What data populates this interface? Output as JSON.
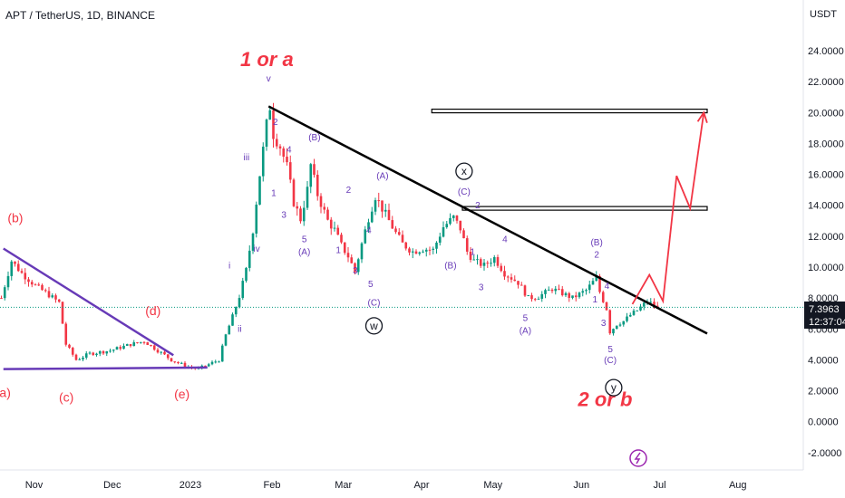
{
  "chart_data": {
    "type": "candlestick",
    "title": "APT / TetherUS, 1D, BINANCE",
    "currency": "USDT",
    "last_price": "7.3963",
    "countdown": "12:37:04",
    "ylim": [
      -3,
      26
    ],
    "y_ticks": [
      "24.0000",
      "22.0000",
      "20.0000",
      "18.0000",
      "16.0000",
      "14.0000",
      "12.0000",
      "10.0000",
      "8.0000",
      "6.0000",
      "4.0000",
      "2.0000",
      "0.0000",
      "-2.0000"
    ],
    "x_ticks": [
      "Nov",
      "Dec",
      "2023",
      "Feb",
      "Mar",
      "Apr",
      "May",
      "Jun",
      "Jul",
      "Aug"
    ],
    "price_path": [
      [
        0,
        8
      ],
      [
        3,
        10.4
      ],
      [
        6,
        9.6
      ],
      [
        10,
        8.8
      ],
      [
        14,
        8.2
      ],
      [
        17,
        7.7
      ],
      [
        19,
        5.0
      ],
      [
        22,
        4.0
      ],
      [
        26,
        4.4
      ],
      [
        32,
        4.6
      ],
      [
        38,
        5.0
      ],
      [
        42,
        5.2
      ],
      [
        46,
        4.6
      ],
      [
        50,
        4.0
      ],
      [
        54,
        3.6
      ],
      [
        58,
        3.4
      ],
      [
        61,
        3.7
      ],
      [
        64,
        4.0
      ],
      [
        66,
        5.6
      ],
      [
        68,
        6.8
      ],
      [
        70,
        8.1
      ],
      [
        72,
        9.8
      ],
      [
        74,
        12.4
      ],
      [
        76,
        16.0
      ],
      [
        78,
        19.2
      ],
      [
        79,
        20.4
      ],
      [
        80,
        18.6
      ],
      [
        82,
        17.8
      ],
      [
        84,
        16.5
      ],
      [
        86,
        14.2
      ],
      [
        88,
        13.1
      ],
      [
        90,
        15.0
      ],
      [
        91,
        16.6
      ],
      [
        93,
        14.7
      ],
      [
        96,
        13.0
      ],
      [
        98,
        12.4
      ],
      [
        100,
        11.4
      ],
      [
        102,
        10.7
      ],
      [
        104,
        9.7
      ],
      [
        106,
        11.5
      ],
      [
        108,
        13.2
      ],
      [
        110,
        14.6
      ],
      [
        113,
        13.4
      ],
      [
        116,
        12.2
      ],
      [
        118,
        11.5
      ],
      [
        121,
        11.0
      ],
      [
        124,
        11.2
      ],
      [
        127,
        11.1
      ],
      [
        130,
        12.6
      ],
      [
        133,
        13.2
      ],
      [
        135,
        12.5
      ],
      [
        137,
        11.0
      ],
      [
        139,
        10.4
      ],
      [
        142,
        10.1
      ],
      [
        145,
        10.6
      ],
      [
        148,
        9.6
      ],
      [
        152,
        9.0
      ],
      [
        155,
        8.0
      ],
      [
        158,
        8.1
      ],
      [
        162,
        8.6
      ],
      [
        165,
        8.3
      ],
      [
        168,
        8.0
      ],
      [
        172,
        8.5
      ],
      [
        175,
        9.3
      ],
      [
        176,
        8.4
      ],
      [
        178,
        7.3
      ],
      [
        179,
        5.8
      ],
      [
        181,
        6.3
      ],
      [
        183,
        6.5
      ],
      [
        185,
        6.9
      ],
      [
        187,
        7.2
      ],
      [
        190,
        7.8
      ],
      [
        193,
        7.4
      ]
    ],
    "trendlines": [
      {
        "name": "falling-resistance",
        "color": "#000000",
        "points": [
          [
            79,
            20.4
          ],
          [
            208,
            5.7
          ]
        ]
      },
      {
        "name": "triangle-upper",
        "color": "#673ab7",
        "points": [
          [
            1,
            11.2
          ],
          [
            51,
            4.3
          ]
        ]
      },
      {
        "name": "triangle-lower",
        "color": "#673ab7",
        "points": [
          [
            1,
            3.4
          ],
          [
            61,
            3.5
          ]
        ]
      }
    ],
    "horizontal_zones": [
      {
        "name": "upper-target",
        "y": 20.1,
        "x": [
          127,
          208
        ]
      },
      {
        "name": "middle-target",
        "y": 13.8,
        "x": [
          136,
          208
        ]
      }
    ],
    "projection": {
      "color": "#f23645",
      "points": [
        [
          186,
          7.6
        ],
        [
          191,
          9.5
        ],
        [
          195,
          7.8
        ],
        [
          199,
          15.9
        ],
        [
          203,
          13.8
        ],
        [
          207,
          20.0
        ]
      ]
    },
    "annotations": [
      {
        "text": "1 or a",
        "x": 78.5,
        "y": 23.0,
        "color": "#f23645",
        "size": "large"
      },
      {
        "text": "2 or b",
        "x": 178,
        "y": 1.0,
        "color": "#f23645",
        "size": "large"
      },
      {
        "text": "v",
        "x": 79,
        "y": 22.0,
        "color": "#673ab7"
      },
      {
        "text": "iii",
        "x": 72.5,
        "y": 16.9,
        "color": "#673ab7"
      },
      {
        "text": "iv",
        "x": 75.5,
        "y": 11.0,
        "color": "#673ab7"
      },
      {
        "text": "i",
        "x": 67.5,
        "y": 9.9,
        "color": "#673ab7"
      },
      {
        "text": "ii",
        "x": 70.5,
        "y": 5.8,
        "color": "#673ab7"
      },
      {
        "text": "2",
        "x": 81,
        "y": 19.2,
        "color": "#673ab7"
      },
      {
        "text": "4",
        "x": 85,
        "y": 17.4,
        "color": "#673ab7"
      },
      {
        "text": "1",
        "x": 80.5,
        "y": 14.6,
        "color": "#673ab7"
      },
      {
        "text": "3",
        "x": 83.5,
        "y": 13.2,
        "color": "#673ab7"
      },
      {
        "text": "5",
        "x": 89.5,
        "y": 11.6,
        "color": "#673ab7"
      },
      {
        "text": "(A)",
        "x": 89.5,
        "y": 10.8,
        "color": "#673ab7"
      },
      {
        "text": "(B)",
        "x": 92.5,
        "y": 18.2,
        "color": "#673ab7"
      },
      {
        "text": "2",
        "x": 102.5,
        "y": 14.8,
        "color": "#673ab7"
      },
      {
        "text": "1",
        "x": 99.5,
        "y": 10.9,
        "color": "#673ab7"
      },
      {
        "text": "3",
        "x": 104.5,
        "y": 9.6,
        "color": "#673ab7"
      },
      {
        "text": "4",
        "x": 108.5,
        "y": 12.2,
        "color": "#673ab7"
      },
      {
        "text": "5",
        "x": 109,
        "y": 8.7,
        "color": "#673ab7"
      },
      {
        "text": "(C)",
        "x": 110,
        "y": 7.5,
        "color": "#673ab7"
      },
      {
        "text": "(A)",
        "x": 112.5,
        "y": 15.7,
        "color": "#673ab7"
      },
      {
        "text": "(B)",
        "x": 132.5,
        "y": 9.9,
        "color": "#673ab7"
      },
      {
        "text": "(C)",
        "x": 136.5,
        "y": 14.7,
        "color": "#673ab7"
      },
      {
        "text": "2",
        "x": 140.5,
        "y": 13.8,
        "color": "#673ab7"
      },
      {
        "text": "1",
        "x": 139,
        "y": 10.8,
        "color": "#673ab7"
      },
      {
        "text": "4",
        "x": 148.5,
        "y": 11.6,
        "color": "#673ab7"
      },
      {
        "text": "3",
        "x": 141.5,
        "y": 8.5,
        "color": "#673ab7"
      },
      {
        "text": "5",
        "x": 154.5,
        "y": 6.5,
        "color": "#673ab7"
      },
      {
        "text": "(A)",
        "x": 154.5,
        "y": 5.7,
        "color": "#673ab7"
      },
      {
        "text": "(B)",
        "x": 175.5,
        "y": 11.4,
        "color": "#673ab7"
      },
      {
        "text": "2",
        "x": 175.5,
        "y": 10.6,
        "color": "#673ab7"
      },
      {
        "text": "4",
        "x": 178.5,
        "y": 8.6,
        "color": "#673ab7"
      },
      {
        "text": "1",
        "x": 175,
        "y": 7.7,
        "color": "#673ab7"
      },
      {
        "text": "3",
        "x": 177.5,
        "y": 6.2,
        "color": "#673ab7"
      },
      {
        "text": "5",
        "x": 179.5,
        "y": 4.5,
        "color": "#673ab7"
      },
      {
        "text": "(C)",
        "x": 179.5,
        "y": 3.8,
        "color": "#673ab7"
      },
      {
        "text": "(b)",
        "x": 4.5,
        "y": 12.9,
        "color": "#f23645",
        "size": "medium"
      },
      {
        "text": "(d)",
        "x": 45,
        "y": 6.9,
        "color": "#f23645",
        "size": "medium"
      },
      {
        "text": "a)",
        "x": 1.5,
        "y": 1.6,
        "color": "#f23645",
        "size": "medium"
      },
      {
        "text": "(c)",
        "x": 19.5,
        "y": 1.3,
        "color": "#f23645",
        "size": "medium"
      },
      {
        "text": "(e)",
        "x": 53.5,
        "y": 1.5,
        "color": "#f23645",
        "size": "medium"
      }
    ],
    "circled_labels": [
      {
        "text": "x",
        "x": 136.5,
        "y": 16.2
      },
      {
        "text": "w",
        "x": 110,
        "y": 6.2
      },
      {
        "text": "y",
        "x": 180.5,
        "y": 2.2
      }
    ]
  }
}
